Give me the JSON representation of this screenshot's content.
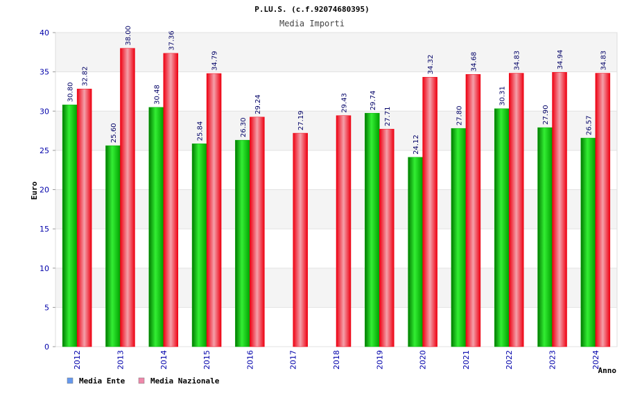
{
  "chart_data": {
    "type": "bar",
    "title": "P.LU.S. (c.f.92074680395)",
    "subtitle": "Media Importi",
    "xlabel": "Anno",
    "ylabel": "Euro",
    "ylim": [
      0,
      40
    ],
    "yticks": [
      0,
      5,
      10,
      15,
      20,
      25,
      30,
      35,
      40
    ],
    "grid": true,
    "legend_position": "bottom-left",
    "categories": [
      "2012",
      "2013",
      "2014",
      "2015",
      "2016",
      "2017",
      "2018",
      "2019",
      "2020",
      "2021",
      "2022",
      "2023",
      "2024"
    ],
    "series": [
      {
        "name": "Media Ente",
        "color": "#00c000",
        "legend_color": "#6699ee",
        "values": [
          30.8,
          25.6,
          30.48,
          25.84,
          26.3,
          null,
          null,
          29.74,
          24.12,
          27.8,
          30.31,
          27.9,
          26.57
        ],
        "labels": [
          "30.80",
          "25.60",
          "30.48",
          "25.84",
          "26.30",
          "",
          "",
          "29.74",
          "24.12",
          "27.80",
          "30.31",
          "27.90",
          "26.57"
        ]
      },
      {
        "name": "Media Nazionale",
        "color": "#ee1122",
        "legend_color": "#ee88aa",
        "values": [
          32.82,
          38.0,
          37.36,
          34.79,
          29.24,
          27.19,
          29.43,
          27.71,
          34.32,
          34.68,
          34.83,
          34.94,
          34.83
        ],
        "labels": [
          "32.82",
          "38.00",
          "37.36",
          "34.79",
          "29.24",
          "27.19",
          "29.43",
          "27.71",
          "34.32",
          "34.68",
          "34.83",
          "34.94",
          "34.83"
        ]
      }
    ]
  }
}
